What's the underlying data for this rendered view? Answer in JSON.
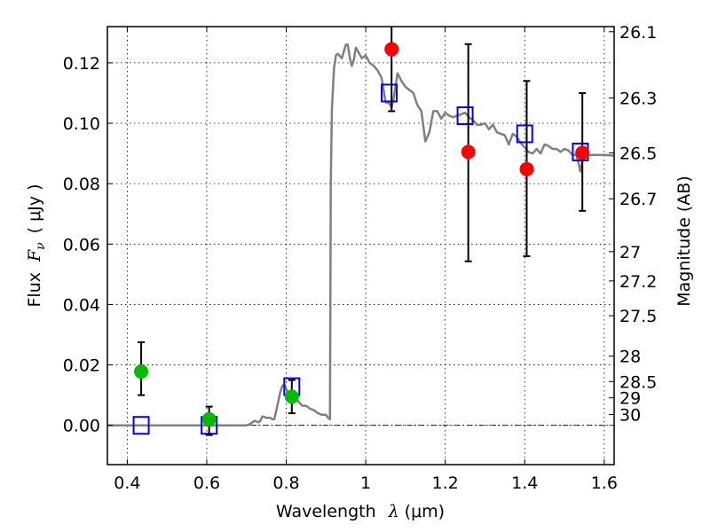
{
  "chart_data": {
    "type": "scatter",
    "title": "",
    "xlabel": "Wavelength  λ (μm)",
    "ylabel": "Flux  Fν  ( μJy )",
    "ylabel_parts": {
      "word": "Flux",
      "symbol": "F",
      "subscript": "ν",
      "unit": "( μJy )"
    },
    "xlabel_parts": {
      "word": "Wavelength",
      "symbol": "λ",
      "unit": "(μm)"
    },
    "y2label": "Magnitude (AB)",
    "xlim": [
      0.35,
      1.625
    ],
    "ylim": [
      -0.013,
      0.132
    ],
    "grid": true,
    "x_ticks": [
      {
        "value": 0.4,
        "label": "0.4"
      },
      {
        "value": 0.6,
        "label": "0.6"
      },
      {
        "value": 0.8,
        "label": "0.8"
      },
      {
        "value": 1.0,
        "label": "1"
      },
      {
        "value": 1.2,
        "label": "1.2"
      },
      {
        "value": 1.4,
        "label": "1.4"
      },
      {
        "value": 1.6,
        "label": "1.6"
      }
    ],
    "y_ticks": [
      {
        "value": 0.0,
        "label": "0.00"
      },
      {
        "value": 0.02,
        "label": "0.02"
      },
      {
        "value": 0.04,
        "label": "0.04"
      },
      {
        "value": 0.06,
        "label": "0.06"
      },
      {
        "value": 0.08,
        "label": "0.08"
      },
      {
        "value": 0.1,
        "label": "0.10"
      },
      {
        "value": 0.12,
        "label": "0.12"
      }
    ],
    "y2_ticks": [
      {
        "flux": 0.1303,
        "label": "26.1"
      },
      {
        "flux": 0.1084,
        "label": "26.3"
      },
      {
        "flux": 0.0902,
        "label": "26.5"
      },
      {
        "flux": 0.075,
        "label": "26.7"
      },
      {
        "flux": 0.0575,
        "label": "27"
      },
      {
        "flux": 0.0478,
        "label": "27.2"
      },
      {
        "flux": 0.0363,
        "label": "27.5"
      },
      {
        "flux": 0.0229,
        "label": "28"
      },
      {
        "flux": 0.0145,
        "label": "28.5"
      },
      {
        "flux": 0.0091,
        "label": "29"
      },
      {
        "flux": 0.0036,
        "label": "30"
      }
    ],
    "series": [
      {
        "name": "model spectrum",
        "kind": "line",
        "color": "#808080",
        "x": [
          0.35,
          0.7,
          0.71,
          0.72,
          0.73,
          0.735,
          0.74,
          0.75,
          0.76,
          0.765,
          0.77,
          0.78,
          0.785,
          0.79,
          0.795,
          0.8,
          0.81,
          0.82,
          0.83,
          0.84,
          0.85,
          0.86,
          0.87,
          0.88,
          0.89,
          0.9,
          0.905,
          0.91,
          0.912,
          0.915,
          0.92,
          0.925,
          0.93,
          0.94,
          0.95,
          0.955,
          0.96,
          0.965,
          0.97,
          0.975,
          0.98,
          0.99,
          1.0,
          1.01,
          1.02,
          1.03,
          1.04,
          1.05,
          1.06,
          1.065,
          1.07,
          1.08,
          1.09,
          1.1,
          1.11,
          1.12,
          1.13,
          1.14,
          1.15,
          1.16,
          1.17,
          1.18,
          1.19,
          1.2,
          1.21,
          1.22,
          1.23,
          1.24,
          1.25,
          1.26,
          1.27,
          1.28,
          1.29,
          1.3,
          1.31,
          1.32,
          1.33,
          1.34,
          1.35,
          1.36,
          1.37,
          1.38,
          1.39,
          1.4,
          1.41,
          1.42,
          1.43,
          1.44,
          1.45,
          1.46,
          1.47,
          1.48,
          1.49,
          1.5,
          1.51,
          1.52,
          1.53,
          1.535,
          1.54,
          1.545,
          1.55,
          1.56,
          1.57,
          1.58,
          1.6,
          1.625
        ],
        "y": [
          0.0,
          0.0,
          0.0005,
          0.0015,
          0.001,
          0.0015,
          0.003,
          0.0025,
          0.0025,
          0.002,
          0.002,
          0.008,
          0.011,
          0.013,
          0.0135,
          0.012,
          0.0095,
          0.009,
          0.008,
          0.0065,
          0.0065,
          0.0055,
          0.005,
          0.004,
          0.0035,
          0.0035,
          0.0025,
          0.002,
          0.08,
          0.105,
          0.118,
          0.1225,
          0.123,
          0.1215,
          0.126,
          0.126,
          0.1215,
          0.119,
          0.121,
          0.125,
          0.124,
          0.1215,
          0.1225,
          0.12,
          0.119,
          0.1175,
          0.115,
          0.107,
          0.1065,
          0.105,
          0.108,
          0.1165,
          0.114,
          0.112,
          0.111,
          0.11,
          0.106,
          0.104,
          0.094,
          0.097,
          0.104,
          0.104,
          0.1015,
          0.1035,
          0.1025,
          0.102,
          0.1025,
          0.103,
          0.1035,
          0.102,
          0.101,
          0.0995,
          0.0995,
          0.1,
          0.098,
          0.0995,
          0.097,
          0.0965,
          0.096,
          0.093,
          0.0965,
          0.0955,
          0.0935,
          0.092,
          0.0905,
          0.09,
          0.0915,
          0.09,
          0.093,
          0.0925,
          0.0915,
          0.0915,
          0.0905,
          0.0915,
          0.091,
          0.0895,
          0.0895,
          0.087,
          0.084,
          0.0875,
          0.09,
          0.0895,
          0.0895,
          0.0895,
          0.0895,
          0.0893
        ]
      },
      {
        "name": "model synthetic photometry",
        "kind": "open-square",
        "color": "#0000ff",
        "x": [
          0.435,
          0.606,
          0.814,
          1.059,
          1.25,
          1.4,
          1.54
        ],
        "y": [
          0.0,
          0.0,
          0.0128,
          0.11,
          0.1025,
          0.0965,
          0.0905
        ]
      },
      {
        "name": "observed photometry (low S/N)",
        "kind": "filled-circle",
        "color": "#00bb00",
        "x": [
          0.435,
          0.606,
          0.814
        ],
        "y": [
          0.0178,
          0.002,
          0.0095
        ],
        "yerr_low": [
          0.0078,
          0.0052,
          0.0055
        ],
        "yerr_high": [
          0.0097,
          0.0042,
          0.0055
        ]
      },
      {
        "name": "observed photometry (detections)",
        "kind": "filled-circle",
        "color": "#ff0000",
        "x": [
          1.065,
          1.258,
          1.405,
          1.545
        ],
        "y": [
          0.1245,
          0.0905,
          0.0848,
          0.0902
        ],
        "yerr_low": [
          0.0205,
          0.0362,
          0.0288,
          0.0192
        ],
        "yerr_high": [
          0.0155,
          0.0357,
          0.0292,
          0.0198
        ]
      }
    ],
    "annotations": [
      {
        "text": "horizontal zero reference line",
        "y": 0.0,
        "style": "dash-dot"
      }
    ]
  }
}
